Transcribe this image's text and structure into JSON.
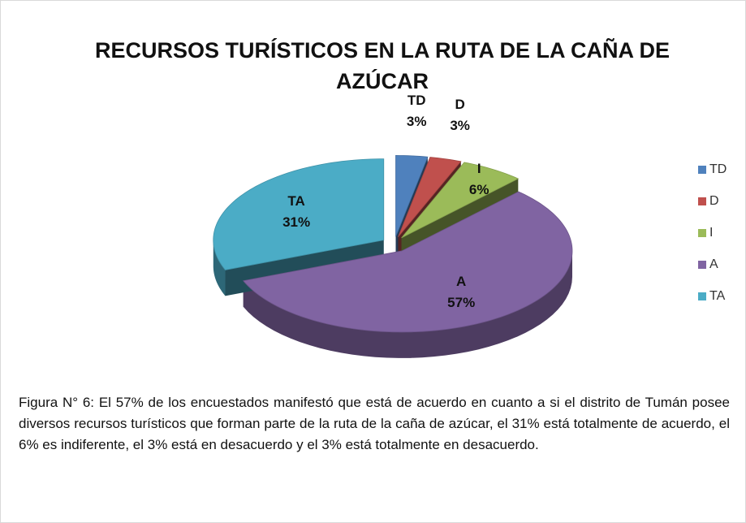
{
  "chart_data": {
    "type": "pie",
    "title": "RECURSOS TURÍSTICOS EN LA RUTA DE LA CAÑA DE AZÚCAR",
    "categories": [
      "TD",
      "D",
      "I",
      "A",
      "TA"
    ],
    "values": [
      3,
      3,
      6,
      57,
      31
    ],
    "value_labels": [
      "3%",
      "3%",
      "6%",
      "57%",
      "31%"
    ],
    "colors": [
      "#4f81bd",
      "#c0504d",
      "#9bbb59",
      "#8064a2",
      "#4bacc6"
    ],
    "legend": "right"
  },
  "caption": "Figura N° 6: El 57% de los encuestados manifestó que está de acuerdo en cuanto a si el distrito de Tumán posee diversos recursos turísticos que forman parte de la ruta de la caña de azúcar, el 31% está totalmente de acuerdo, el 6% es indiferente, el 3% está en desacuerdo y el 3% está totalmente en desacuerdo."
}
